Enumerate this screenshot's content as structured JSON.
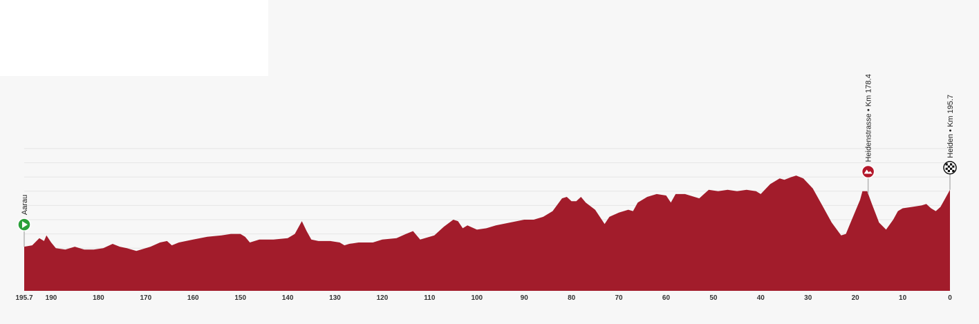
{
  "colors": {
    "profile_fill": "#a21c2b",
    "grid": "#e6e6e6",
    "start_marker": "#2aa03a",
    "climb_marker": "#b3172a",
    "finish_marker_dark": "#111111"
  },
  "chart_data": {
    "type": "area",
    "x_axis": {
      "direction": "descending",
      "range": [
        195.7,
        0
      ],
      "tick_labels": [
        "195.7",
        "190",
        "180",
        "170",
        "160",
        "150",
        "140",
        "130",
        "120",
        "110",
        "100",
        "90",
        "80",
        "70",
        "60",
        "50",
        "40",
        "30",
        "20",
        "10",
        "0"
      ],
      "tick_values": [
        195.7,
        190,
        180,
        170,
        160,
        150,
        140,
        130,
        120,
        110,
        100,
        90,
        80,
        70,
        60,
        50,
        40,
        30,
        20,
        10,
        0
      ]
    },
    "y_axis": {
      "range": [
        0,
        10
      ],
      "note": "relative elevation, no printed scale"
    },
    "grid": true,
    "series": [
      {
        "x": [
          195.7,
          194,
          192.5,
          191.5,
          191,
          190,
          189,
          187,
          185,
          183,
          181,
          179,
          177,
          175.5,
          174,
          172,
          171,
          169,
          167,
          165.5,
          164.5,
          163,
          160,
          157,
          154,
          152,
          151,
          150,
          149,
          148,
          146,
          143,
          140,
          138.5,
          137,
          136,
          135,
          133.5,
          131,
          129,
          128,
          127,
          125,
          122,
          120,
          117,
          115,
          113.5,
          112,
          110,
          109,
          107,
          105,
          104,
          103,
          102,
          100,
          98,
          96,
          93,
          90,
          88,
          86,
          84,
          82,
          81,
          80,
          79,
          78,
          77,
          75,
          73,
          72,
          70,
          68,
          67,
          66,
          64,
          62,
          60,
          59,
          58,
          56,
          53,
          51,
          49,
          47,
          45,
          43,
          41,
          40,
          38,
          36,
          35,
          33.5,
          32.5,
          31,
          29,
          27,
          25,
          23,
          22,
          21,
          19,
          18.5,
          17.5,
          16.5,
          15,
          13.5,
          12,
          11,
          10,
          8,
          6,
          5,
          4,
          3,
          2,
          1,
          0
        ],
        "y": [
          3.1,
          3.2,
          3.7,
          3.5,
          3.9,
          3.4,
          3.0,
          2.9,
          3.1,
          2.9,
          2.9,
          3.0,
          3.3,
          3.1,
          3.0,
          2.8,
          2.9,
          3.1,
          3.4,
          3.5,
          3.2,
          3.4,
          3.6,
          3.8,
          3.9,
          4.0,
          4.0,
          4.0,
          3.8,
          3.4,
          3.6,
          3.6,
          3.7,
          4.0,
          4.9,
          4.2,
          3.6,
          3.5,
          3.5,
          3.4,
          3.2,
          3.3,
          3.4,
          3.4,
          3.6,
          3.7,
          4.0,
          4.2,
          3.6,
          3.8,
          3.9,
          4.5,
          5.0,
          4.9,
          4.4,
          4.6,
          4.3,
          4.4,
          4.6,
          4.8,
          5.0,
          5.0,
          5.2,
          5.6,
          6.5,
          6.6,
          6.3,
          6.3,
          6.6,
          6.2,
          5.7,
          4.7,
          5.2,
          5.5,
          5.7,
          5.6,
          6.2,
          6.6,
          6.8,
          6.7,
          6.2,
          6.8,
          6.8,
          6.5,
          7.1,
          7.0,
          7.1,
          7.0,
          7.1,
          7.0,
          6.8,
          7.5,
          7.9,
          7.8,
          8.0,
          8.1,
          7.9,
          7.2,
          6.0,
          4.8,
          3.9,
          4.0,
          4.8,
          6.4,
          7.0,
          7.0,
          6.1,
          4.8,
          4.3,
          5.0,
          5.6,
          5.8,
          5.9,
          6.0,
          6.1,
          5.8,
          5.6,
          5.9,
          6.5,
          7.1
        ]
      }
    ],
    "waypoints": [
      {
        "label": "Aarau",
        "km": 195.7,
        "type": "start"
      },
      {
        "label": "Heidenstrasse • Km 178.4",
        "km": 17.3,
        "type": "climb"
      },
      {
        "label": "Heiden • Km 195.7",
        "km": 0,
        "type": "finish"
      }
    ]
  }
}
